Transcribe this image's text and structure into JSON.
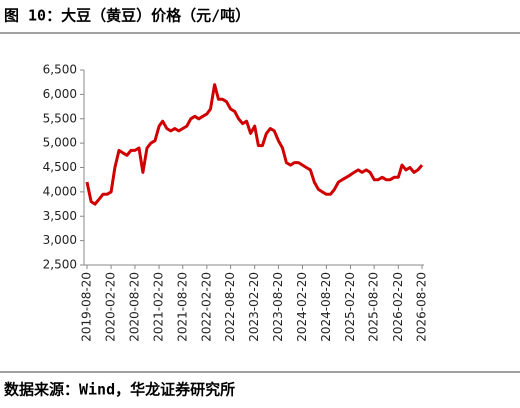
{
  "chart_data": {
    "type": "line",
    "title": "图 10：大豆（黄豆）价格（元/吨）",
    "source": "数据来源：Wind，华龙证券研究所",
    "x": [
      "2019-08-20",
      "2019-09-20",
      "2019-10-20",
      "2019-11-20",
      "2019-12-20",
      "2020-01-20",
      "2020-02-20",
      "2020-03-20",
      "2020-04-20",
      "2020-05-20",
      "2020-06-20",
      "2020-07-20",
      "2020-08-20",
      "2020-09-20",
      "2020-10-20",
      "2020-11-20",
      "2020-12-20",
      "2021-01-20",
      "2021-02-20",
      "2021-03-20",
      "2021-04-20",
      "2021-05-20",
      "2021-06-20",
      "2021-07-20",
      "2021-08-20",
      "2021-09-20",
      "2021-10-20",
      "2021-11-20",
      "2021-12-20",
      "2022-01-20",
      "2022-02-20",
      "2022-03-20",
      "2022-04-20",
      "2022-05-20",
      "2022-06-20",
      "2022-07-20",
      "2022-08-20",
      "2022-09-20",
      "2022-10-20",
      "2022-11-20",
      "2022-12-20",
      "2023-01-20",
      "2023-02-20",
      "2023-03-20",
      "2023-04-20",
      "2023-05-20",
      "2023-06-20",
      "2023-07-20",
      "2023-08-20",
      "2023-09-20",
      "2023-10-20",
      "2023-11-20",
      "2023-12-20",
      "2024-01-20",
      "2024-02-20",
      "2024-03-20",
      "2024-04-20",
      "2024-05-20",
      "2024-06-20",
      "2024-07-20",
      "2024-08-20",
      "2024-09-20",
      "2024-10-20",
      "2024-11-20",
      "2024-12-20",
      "2025-01-20",
      "2025-02-20",
      "2025-03-20",
      "2025-04-20",
      "2025-05-20",
      "2025-06-20",
      "2025-07-20",
      "2025-08-20",
      "2025-09-20",
      "2025-10-20",
      "2025-11-20",
      "2025-12-20",
      "2026-01-20",
      "2026-02-20",
      "2026-03-20",
      "2026-04-20",
      "2026-05-20",
      "2026-06-20",
      "2026-07-20",
      "2026-08-20"
    ],
    "series": [
      {
        "color": "#d00000",
        "values": [
          4200,
          3800,
          3750,
          3850,
          3950,
          3950,
          4000,
          4500,
          4850,
          4800,
          4750,
          4850,
          4850,
          4900,
          4400,
          4900,
          5000,
          5050,
          5350,
          5450,
          5300,
          5250,
          5300,
          5250,
          5300,
          5350,
          5500,
          5550,
          5500,
          5550,
          5600,
          5700,
          6200,
          5900,
          5900,
          5850,
          5700,
          5650,
          5500,
          5400,
          5450,
          5200,
          5350,
          4950,
          4950,
          5200,
          5300,
          5250,
          5050,
          4900,
          4600,
          4550,
          4600,
          4600,
          4550,
          4500,
          4450,
          4200,
          4050,
          4000,
          3950,
          3950,
          4050,
          4200,
          4250,
          4300,
          4350,
          4400,
          4450,
          4400,
          4450,
          4400,
          4250,
          4250,
          4300,
          4250,
          4250,
          4300,
          4300,
          4550,
          4450,
          4500,
          4400,
          4450,
          4550
        ]
      }
    ],
    "xlim": [
      "2019-08-20",
      "2026-08-20"
    ],
    "xticks": [
      "2019-08-20",
      "2020-02-20",
      "2020-08-20",
      "2021-02-20",
      "2021-08-20",
      "2022-02-20",
      "2022-08-20",
      "2023-02-20",
      "2023-08-20",
      "2024-02-20",
      "2024-08-20",
      "2025-02-20",
      "2025-08-20",
      "2026-02-20",
      "2026-08-20"
    ],
    "ylim": [
      2500,
      6500
    ],
    "yticks": [
      {
        "value": 2500,
        "label": "2,500"
      },
      {
        "value": 3000,
        "label": "3,000"
      },
      {
        "value": 3500,
        "label": "3,500"
      },
      {
        "value": 4000,
        "label": "4,000"
      },
      {
        "value": 4500,
        "label": "4,500"
      },
      {
        "value": 5000,
        "label": "5,000"
      },
      {
        "value": 5500,
        "label": "5,500"
      },
      {
        "value": 6000,
        "label": "6,000"
      },
      {
        "value": 6500,
        "label": "6,500"
      }
    ],
    "grid": false
  }
}
